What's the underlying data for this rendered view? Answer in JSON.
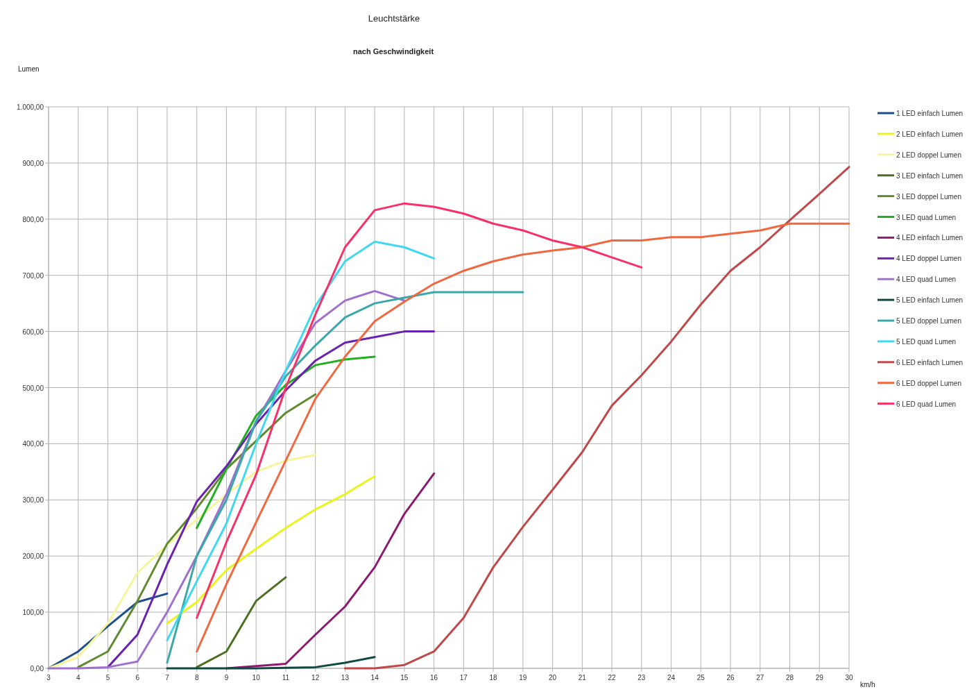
{
  "chart_data": {
    "type": "line",
    "title": "Leuchtstärke",
    "subtitle": "nach Geschwindigkeit",
    "ylabel": "Lumen",
    "xlabel": "km/h",
    "xlim": [
      3,
      30
    ],
    "xticks": [
      3,
      4,
      5,
      6,
      7,
      8,
      9,
      10,
      11,
      12,
      13,
      14,
      15,
      16,
      17,
      18,
      19,
      20,
      21,
      22,
      23,
      24,
      25,
      26,
      27,
      28,
      29,
      30
    ],
    "ylim": [
      0,
      1000
    ],
    "yticks": [
      {
        "value": 0,
        "label": "0,00"
      },
      {
        "value": 100,
        "label": "100,00"
      },
      {
        "value": 200,
        "label": "200,00"
      },
      {
        "value": 300,
        "label": "300,00"
      },
      {
        "value": 400,
        "label": "400,00"
      },
      {
        "value": 500,
        "label": "500,00"
      },
      {
        "value": 600,
        "label": "600,00"
      },
      {
        "value": 700,
        "label": "700,00"
      },
      {
        "value": 800,
        "label": "800,00"
      },
      {
        "value": 900,
        "label": "900,00"
      },
      {
        "value": 1000,
        "label": "1.000,00"
      }
    ],
    "grid": true,
    "legend": "right",
    "marker": "none",
    "line_style": "solid",
    "series": [
      {
        "name": "1 LED einfach Lumen",
        "color": "#1f4e8c",
        "x": [
          3,
          4,
          5,
          6,
          7
        ],
        "values": [
          0,
          30,
          75,
          118,
          133
        ]
      },
      {
        "name": "2 LED einfach Lumen",
        "color": "#e8f51a",
        "x": [
          7,
          8,
          9,
          10,
          11,
          12,
          13,
          14
        ],
        "values": [
          80,
          118,
          175,
          213,
          250,
          283,
          310,
          342
        ]
      },
      {
        "name": "2 LED doppel Lumen",
        "color": "#f5f59a",
        "x": [
          3,
          4,
          5,
          6,
          7,
          8,
          9,
          10,
          11,
          12
        ],
        "values": [
          0,
          20,
          80,
          170,
          220,
          265,
          310,
          350,
          370,
          380
        ]
      },
      {
        "name": "3 LED einfach Lumen",
        "color": "#4a7020",
        "x": [
          8,
          9,
          10,
          11
        ],
        "values": [
          2,
          30,
          120,
          162
        ]
      },
      {
        "name": "3 LED doppel Lumen",
        "color": "#5f8a30",
        "x": [
          4,
          5,
          6,
          7,
          8,
          9,
          10,
          11,
          12
        ],
        "values": [
          2,
          30,
          120,
          222,
          285,
          355,
          405,
          455,
          488
        ]
      },
      {
        "name": "3 LED quad Lumen",
        "color": "#20b020",
        "x": [
          8,
          9,
          10,
          11,
          12,
          13,
          14
        ],
        "values": [
          250,
          355,
          450,
          505,
          540,
          550,
          555
        ]
      },
      {
        "name": "4 LED einfach Lumen",
        "color": "#8c1a70",
        "x": [
          9,
          10,
          11,
          12,
          13,
          14,
          15,
          16
        ],
        "values": [
          0,
          4,
          8,
          60,
          110,
          180,
          275,
          347
        ]
      },
      {
        "name": "4 LED doppel Lumen",
        "color": "#6a22b0",
        "x": [
          5,
          6,
          7,
          8,
          9,
          10,
          11,
          12,
          13,
          14,
          15,
          16
        ],
        "values": [
          2,
          60,
          185,
          297,
          360,
          435,
          495,
          548,
          580,
          590,
          600,
          600
        ]
      },
      {
        "name": "4 LED quad Lumen",
        "color": "#a070d0",
        "x": [
          3,
          4,
          5,
          6,
          7,
          8,
          9,
          10,
          11,
          12,
          13,
          14,
          15
        ],
        "values": [
          0,
          0,
          2,
          12,
          100,
          200,
          310,
          440,
          530,
          615,
          655,
          672,
          655
        ]
      },
      {
        "name": "5 LED einfach Lumen",
        "color": "#0f4a40",
        "x": [
          7,
          8,
          9,
          10,
          11,
          12,
          13,
          14
        ],
        "values": [
          0,
          0,
          0,
          0,
          1,
          2,
          10,
          20
        ]
      },
      {
        "name": "5 LED doppel Lumen",
        "color": "#3aa8a8",
        "x": [
          7,
          8,
          9,
          10,
          11,
          12,
          13,
          14,
          15,
          16,
          17,
          18,
          19
        ],
        "values": [
          10,
          200,
          300,
          440,
          520,
          575,
          625,
          650,
          660,
          670,
          670,
          670,
          670
        ]
      },
      {
        "name": "5 LED quad Lumen",
        "color": "#40d8f0",
        "x": [
          7,
          8,
          9,
          10,
          11,
          12,
          13,
          14,
          15,
          16
        ],
        "values": [
          50,
          155,
          258,
          400,
          530,
          645,
          725,
          760,
          750,
          730
        ]
      },
      {
        "name": "6 LED einfach Lumen",
        "color": "#c04848",
        "x": [
          13,
          14,
          15,
          16,
          17,
          18,
          19,
          20,
          21,
          22,
          23,
          24,
          25,
          26,
          27,
          28,
          29,
          30
        ],
        "values": [
          0,
          0,
          6,
          30,
          90,
          180,
          252,
          318,
          385,
          468,
          522,
          582,
          648,
          708,
          750,
          798,
          845,
          893
        ]
      },
      {
        "name": "6 LED doppel Lumen",
        "color": "#f06840",
        "x": [
          8,
          9,
          10,
          11,
          12,
          13,
          14,
          15,
          16,
          17,
          18,
          19,
          20,
          21,
          22,
          23,
          24,
          25,
          26,
          27,
          28,
          29,
          30
        ],
        "values": [
          30,
          150,
          260,
          370,
          480,
          555,
          618,
          653,
          685,
          708,
          725,
          737,
          744,
          750,
          762,
          762,
          768,
          768,
          774,
          780,
          792,
          792,
          792
        ]
      },
      {
        "name": "6 LED quad Lumen",
        "color": "#f83068",
        "x": [
          8,
          9,
          10,
          11,
          12,
          13,
          14,
          15,
          16,
          17,
          18,
          19,
          20,
          21,
          22,
          23
        ],
        "values": [
          90,
          225,
          345,
          500,
          630,
          750,
          816,
          828,
          822,
          810,
          792,
          780,
          762,
          750,
          732,
          714
        ]
      }
    ]
  }
}
